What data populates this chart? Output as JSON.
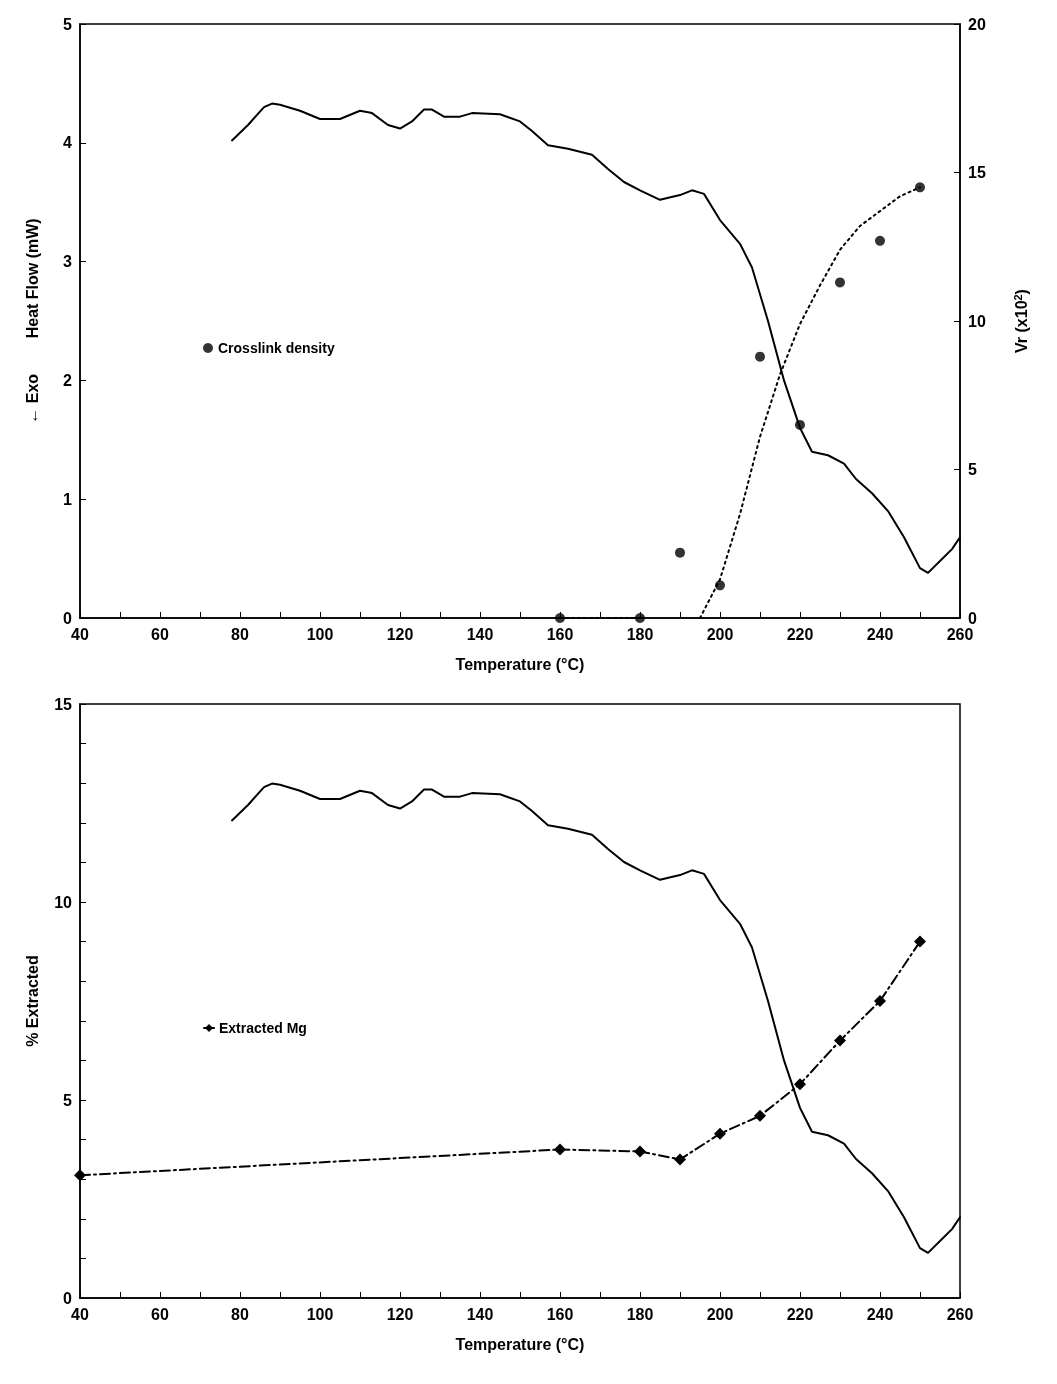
{
  "chart_data": [
    {
      "type": "line",
      "xlabel": "Temperature (°C)",
      "ylabel": "← Exo        Heat Flow (mW)",
      "y2label": "Vr (x10$^{2}$)",
      "xlim": [
        40,
        260
      ],
      "xticks": [
        40,
        {
          "value": 50,
          "label": null
        },
        60,
        {
          "value": 70,
          "label": null
        },
        80,
        {
          "value": 90,
          "label": null
        },
        100,
        {
          "value": 110,
          "label": null
        },
        120,
        {
          "value": 130,
          "label": null
        },
        140,
        {
          "value": 150,
          "label": null
        },
        160,
        {
          "value": 170,
          "label": null
        },
        180,
        {
          "value": 190,
          "label": null
        },
        200,
        {
          "value": 210,
          "label": null
        },
        220,
        {
          "value": 230,
          "label": null
        },
        240,
        {
          "value": 250,
          "label": null
        },
        260
      ],
      "ylim": [
        0,
        5
      ],
      "yticks": [
        0,
        1,
        2,
        3,
        4,
        5
      ],
      "y2lim": [
        0,
        20
      ],
      "y2ticks": [
        0,
        5,
        10,
        15,
        20
      ],
      "grid": false,
      "legend": "left",
      "marker": "circle",
      "series": [
        {
          "marker": "none",
          "line_style": "solid",
          "color": "#000000",
          "x": [
            78,
            82,
            86,
            88,
            90,
            95,
            100,
            105,
            110,
            113,
            117,
            120,
            123,
            126,
            128,
            131,
            135,
            138,
            145,
            150,
            153,
            157,
            162,
            168,
            172,
            176,
            180,
            185,
            190,
            193,
            196,
            200,
            205,
            208,
            212,
            216,
            220,
            223,
            227,
            231,
            234,
            238,
            242,
            246,
            250,
            252,
            255,
            258,
            260
          ],
          "values": [
            4.02,
            4.15,
            4.3,
            4.33,
            4.32,
            4.27,
            4.2,
            4.2,
            4.27,
            4.25,
            4.15,
            4.12,
            4.18,
            4.28,
            4.28,
            4.22,
            4.22,
            4.25,
            4.24,
            4.18,
            4.1,
            3.98,
            3.95,
            3.9,
            3.78,
            3.67,
            3.6,
            3.52,
            3.56,
            3.6,
            3.57,
            3.35,
            3.15,
            2.95,
            2.5,
            2.0,
            1.6,
            1.4,
            1.37,
            1.3,
            1.17,
            1.05,
            0.9,
            0.68,
            0.42,
            0.38,
            0.48,
            0.58,
            0.68
          ]
        },
        {
          "type": "scatter",
          "name": "Crosslink density",
          "axis": "y2",
          "color": "#000000",
          "x": [
            160,
            180,
            190,
            200,
            210,
            220,
            230,
            240,
            250
          ],
          "values": [
            0,
            0,
            2.2,
            1.1,
            8.8,
            6.5,
            11.3,
            12.7,
            14.5
          ]
        },
        {
          "type": "line",
          "marker": "none",
          "line_style": "dotted",
          "axis": "y2",
          "color": "#000000",
          "x": [
            160,
            180,
            187,
            195,
            200,
            205,
            210,
            215,
            220,
            225,
            230,
            235,
            240,
            245,
            250
          ],
          "values": [
            0,
            0,
            null,
            0,
            1.3,
            3.5,
            6.1,
            8.2,
            9.9,
            11.2,
            12.4,
            13.2,
            13.7,
            14.2,
            14.5
          ]
        }
      ]
    },
    {
      "type": "line",
      "xlabel": "Temperature (°C)",
      "ylabel": "% Extracted",
      "xlim": [
        40,
        260
      ],
      "xticks": [
        40,
        {
          "value": 50,
          "label": null
        },
        60,
        {
          "value": 70,
          "label": null
        },
        80,
        {
          "value": 90,
          "label": null
        },
        100,
        {
          "value": 110,
          "label": null
        },
        120,
        {
          "value": 130,
          "label": null
        },
        140,
        {
          "value": 150,
          "label": null
        },
        160,
        {
          "value": 170,
          "label": null
        },
        180,
        {
          "value": 190,
          "label": null
        },
        200,
        {
          "value": 210,
          "label": null
        },
        220,
        {
          "value": 230,
          "label": null
        },
        240,
        {
          "value": 250,
          "label": null
        },
        260
      ],
      "ylim": [
        0,
        15
      ],
      "yticks": [
        0,
        {
          "value": 1,
          "label": null
        },
        {
          "value": 2,
          "label": null
        },
        {
          "value": 3,
          "label": null
        },
        {
          "value": 4,
          "label": null
        },
        5,
        {
          "value": 6,
          "label": null
        },
        {
          "value": 7,
          "label": null
        },
        {
          "value": 8,
          "label": null
        },
        {
          "value": 9,
          "label": null
        },
        10,
        {
          "value": 11,
          "label": null
        },
        {
          "value": 12,
          "label": null
        },
        {
          "value": 13,
          "label": null
        },
        {
          "value": 14,
          "label": null
        },
        15
      ],
      "grid": false,
      "legend": "left",
      "marker": "diamond",
      "series": [
        {
          "marker": "none",
          "line_style": "solid",
          "color": "#000000",
          "x": [
            78,
            82,
            86,
            88,
            90,
            95,
            100,
            105,
            110,
            113,
            117,
            120,
            123,
            126,
            128,
            131,
            135,
            138,
            145,
            150,
            153,
            157,
            162,
            168,
            172,
            176,
            180,
            185,
            190,
            193,
            196,
            200,
            205,
            208,
            212,
            216,
            220,
            223,
            227,
            231,
            234,
            238,
            242,
            246,
            250,
            252,
            255,
            258,
            260
          ],
          "values": [
            12.06,
            12.45,
            12.9,
            12.99,
            12.96,
            12.81,
            12.6,
            12.6,
            12.81,
            12.75,
            12.45,
            12.36,
            12.54,
            12.84,
            12.84,
            12.66,
            12.66,
            12.75,
            12.72,
            12.54,
            12.3,
            11.94,
            11.85,
            11.7,
            11.34,
            11.01,
            10.8,
            10.56,
            10.68,
            10.8,
            10.71,
            10.05,
            9.45,
            8.85,
            7.5,
            6.0,
            4.8,
            4.2,
            4.11,
            3.9,
            3.51,
            3.15,
            2.7,
            2.04,
            1.26,
            1.14,
            1.44,
            1.74,
            2.04
          ]
        },
        {
          "type": "line",
          "name": "Extracted Mg",
          "line_style": "dashed",
          "color": "#000000",
          "x": [
            40,
            160,
            180,
            190,
            200,
            210,
            220,
            230,
            240,
            250
          ],
          "values": [
            3.1,
            3.75,
            3.7,
            3.5,
            4.15,
            4.6,
            5.4,
            6.5,
            7.5,
            9.0
          ]
        }
      ]
    }
  ]
}
